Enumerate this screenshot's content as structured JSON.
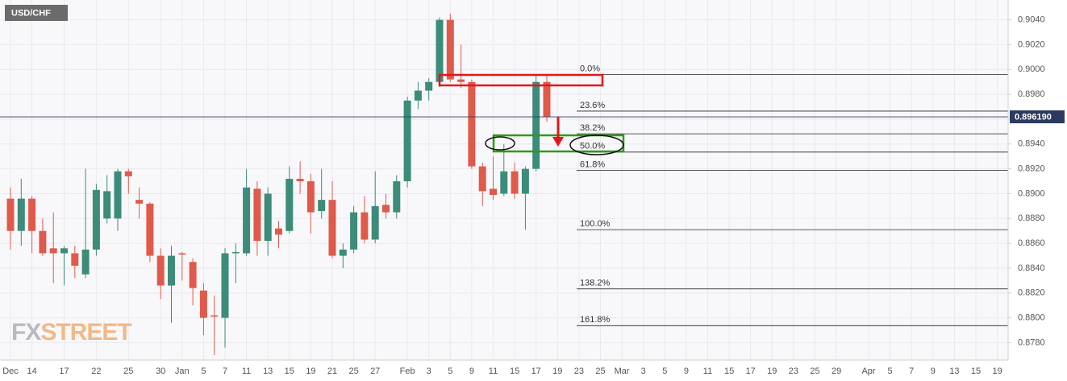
{
  "chart_data": {
    "type": "candlestick",
    "title": "USD/CHF",
    "watermark": [
      "FX",
      "STREET"
    ],
    "up_color": "#3c8c79",
    "down_color": "#e05a4b",
    "grid": true,
    "categories": [
      "Dec",
      null,
      "14",
      null,
      null,
      "17",
      null,
      null,
      "22",
      null,
      null,
      "25",
      null,
      null,
      "30",
      null,
      "Jan",
      null,
      "5",
      null,
      "7",
      null,
      "11",
      null,
      "13",
      null,
      "15",
      null,
      "19",
      null,
      "21",
      null,
      "25",
      null,
      "27",
      null,
      null,
      "Feb",
      null,
      "3",
      null,
      "5",
      null,
      "9",
      null,
      "11",
      null,
      "15",
      null,
      "17",
      null,
      "19",
      null,
      "23",
      null,
      "25",
      null,
      "Mar",
      null,
      "3",
      null,
      "5",
      null,
      "9",
      null,
      "11",
      null,
      "15",
      null,
      "17",
      null,
      "19",
      null,
      "23",
      null,
      "25",
      null,
      "29",
      null,
      null,
      "Apr",
      null,
      "5",
      null,
      "7",
      null,
      "9",
      null,
      "13",
      null,
      "15",
      null,
      "19"
    ],
    "open": [
      0.8896,
      0.887,
      0.8896,
      0.887,
      0.8856,
      0.8852,
      0.8852,
      0.8835,
      0.8855,
      0.888,
      0.888,
      0.8918,
      0.8895,
      0.8892,
      0.885,
      0.8826,
      0.8852,
      0.8845,
      0.8822,
      0.8802,
      0.88,
      0.8852,
      0.8852,
      0.8904,
      0.8862,
      0.8872,
      0.887,
      0.8912,
      0.891,
      0.8886,
      0.8895,
      0.885,
      0.8855,
      0.8885,
      0.8863,
      0.8891,
      0.8885,
      0.891,
      0.8975,
      0.8983,
      0.899,
      0.904,
      0.8992,
      0.899,
      0.8922,
      0.8904,
      0.89,
      0.8918,
      0.89,
      0.892,
      0.899,
      null,
      null,
      null,
      null,
      null,
      null,
      null,
      null,
      null,
      null,
      null,
      null,
      null,
      null,
      null,
      null,
      null,
      null,
      null,
      null,
      null,
      null,
      null,
      null,
      null,
      null,
      null,
      null,
      null,
      null,
      null,
      null,
      null,
      null,
      null,
      null,
      null,
      null,
      null,
      null,
      null,
      null
    ],
    "high": [
      0.8905,
      0.8912,
      0.8898,
      0.888,
      0.8885,
      0.8858,
      0.8858,
      0.892,
      0.8908,
      0.8915,
      0.892,
      0.892,
      0.8905,
      0.8893,
      0.8856,
      0.8858,
      0.8853,
      0.8848,
      0.8828,
      0.8818,
      0.8856,
      0.886,
      0.892,
      0.891,
      0.8905,
      0.8878,
      0.8922,
      0.8926,
      0.8916,
      0.892,
      0.891,
      0.886,
      0.889,
      0.8898,
      0.8918,
      0.89,
      0.8915,
      0.8978,
      0.899,
      0.8993,
      0.9042,
      0.9045,
      0.902,
      0.8992,
      0.8925,
      0.893,
      0.894,
      0.8925,
      0.8922,
      0.8995,
      0.8996,
      null,
      null,
      null,
      null,
      null,
      null,
      null,
      null,
      null,
      null,
      null,
      null,
      null,
      null,
      null,
      null,
      null,
      null,
      null,
      null,
      null,
      null,
      null,
      null,
      null,
      null,
      null,
      null,
      null,
      null,
      null,
      null,
      null,
      null,
      null,
      null,
      null,
      null,
      null,
      null,
      null,
      null
    ],
    "low": [
      0.8855,
      0.8858,
      0.8852,
      0.885,
      0.8828,
      0.8826,
      0.8832,
      0.8832,
      0.885,
      0.8876,
      0.887,
      0.89,
      0.888,
      0.8845,
      0.8815,
      0.8796,
      0.883,
      0.881,
      0.8786,
      0.877,
      0.8776,
      0.8828,
      0.885,
      0.885,
      0.885,
      0.8856,
      0.8868,
      0.89,
      0.8868,
      0.888,
      0.8848,
      0.884,
      0.8852,
      0.886,
      0.886,
      0.888,
      0.888,
      0.8905,
      0.8968,
      0.8975,
      0.8986,
      0.899,
      0.8985,
      0.892,
      0.889,
      0.8895,
      0.8898,
      0.8896,
      0.8871,
      0.8918,
      0.8958,
      null,
      null,
      null,
      null,
      null,
      null,
      null,
      null,
      null,
      null,
      null,
      null,
      null,
      null,
      null,
      null,
      null,
      null,
      null,
      null,
      null,
      null,
      null,
      null,
      null,
      null,
      null,
      null,
      null,
      null,
      null,
      null,
      null,
      null,
      null,
      null,
      null,
      null,
      null,
      null,
      null,
      null
    ],
    "close": [
      0.887,
      0.8896,
      0.887,
      0.8852,
      0.8852,
      0.8856,
      0.8842,
      0.8855,
      0.8903,
      0.8902,
      0.8918,
      0.8914,
      0.8892,
      0.885,
      0.8826,
      0.885,
      0.8851,
      0.8824,
      0.88,
      0.8801,
      0.8852,
      0.8853,
      0.8905,
      0.8862,
      0.89,
      0.8867,
      0.8912,
      0.891,
      0.8885,
      0.8895,
      0.885,
      0.8855,
      0.8885,
      0.8863,
      0.889,
      0.8885,
      0.891,
      0.8975,
      0.8983,
      0.899,
      0.904,
      0.8992,
      0.899,
      0.8922,
      0.8902,
      0.8899,
      0.8918,
      0.89,
      0.892,
      0.899,
      0.8962,
      null,
      null,
      null,
      null,
      null,
      null,
      null,
      null,
      null,
      null,
      null,
      null,
      null,
      null,
      null,
      null,
      null,
      null,
      null,
      null,
      null,
      null,
      null,
      null,
      null,
      null,
      null,
      null,
      null,
      null,
      null,
      null,
      null,
      null,
      null,
      null,
      null,
      null,
      null,
      null,
      null,
      null
    ],
    "ylim": [
      0.8766,
      0.9056
    ],
    "yticks": [
      {
        "value": 0.904,
        "label": "0.9040"
      },
      {
        "value": 0.902,
        "label": "0.9020"
      },
      {
        "value": 0.9,
        "label": "0.9000"
      },
      {
        "value": 0.898,
        "label": "0.8980"
      },
      {
        "value": 0.896,
        "label": "0.8960"
      },
      {
        "value": 0.894,
        "label": "0.8940"
      },
      {
        "value": 0.892,
        "label": "0.8920"
      },
      {
        "value": 0.89,
        "label": "0.8900"
      },
      {
        "value": 0.888,
        "label": "0.8880"
      },
      {
        "value": 0.886,
        "label": "0.8860"
      },
      {
        "value": 0.884,
        "label": "0.8840"
      },
      {
        "value": 0.882,
        "label": "0.8820"
      },
      {
        "value": 0.88,
        "label": "0.8800"
      },
      {
        "value": 0.878,
        "label": "0.8780"
      }
    ],
    "last_price": {
      "value": 0.89619,
      "label": "0.896190"
    },
    "fib_levels": [
      {
        "value": 0.8996,
        "label": "0.0%"
      },
      {
        "value": 0.89665,
        "label": "23.6%"
      },
      {
        "value": 0.89482,
        "label": "38.2%"
      },
      {
        "value": 0.89335,
        "label": "50.0%"
      },
      {
        "value": 0.89188,
        "label": "61.8%"
      },
      {
        "value": 0.8871,
        "label": "100.0%"
      },
      {
        "value": 0.88233,
        "label": "138.2%"
      },
      {
        "value": 0.87937,
        "label": "161.8%"
      }
    ]
  }
}
